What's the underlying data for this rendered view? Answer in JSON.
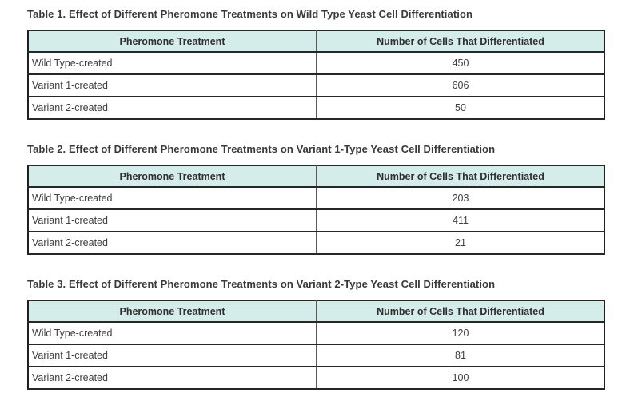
{
  "document": {
    "type": "data-tables",
    "topic": "Effect of pheromone treatments on yeast cell differentiation"
  },
  "colors": {
    "header_background": "#d4ecea",
    "outer_border": "#1f1f1f",
    "row_border": "#272727",
    "column_divider": "#5a5a5a",
    "title_text": "#3a3a3a",
    "cell_text": "#404040"
  },
  "columns": [
    "Pheromone Treatment",
    "Number of Cells That Differentiated"
  ],
  "tables": [
    {
      "title": "Table 1. Effect of Different Pheromone Treatments on Wild Type Yeast Cell Differentiation",
      "rows": [
        [
          "Wild Type-created",
          "450"
        ],
        [
          "Variant 1-created",
          "606"
        ],
        [
          "Variant 2-created",
          "50"
        ]
      ]
    },
    {
      "title": "Table 2. Effect of Different Pheromone Treatments on Variant 1-Type Yeast Cell Differentiation",
      "rows": [
        [
          "Wild Type-created",
          "203"
        ],
        [
          "Variant 1-created",
          "411"
        ],
        [
          "Variant 2-created",
          "21"
        ]
      ]
    },
    {
      "title": "Table 3. Effect of Different Pheromone Treatments on Variant 2-Type Yeast Cell Differentiation",
      "rows": [
        [
          "Wild Type-created",
          "120"
        ],
        [
          "Variant 1-created",
          "81"
        ],
        [
          "Variant 2-created",
          "100"
        ]
      ]
    }
  ]
}
